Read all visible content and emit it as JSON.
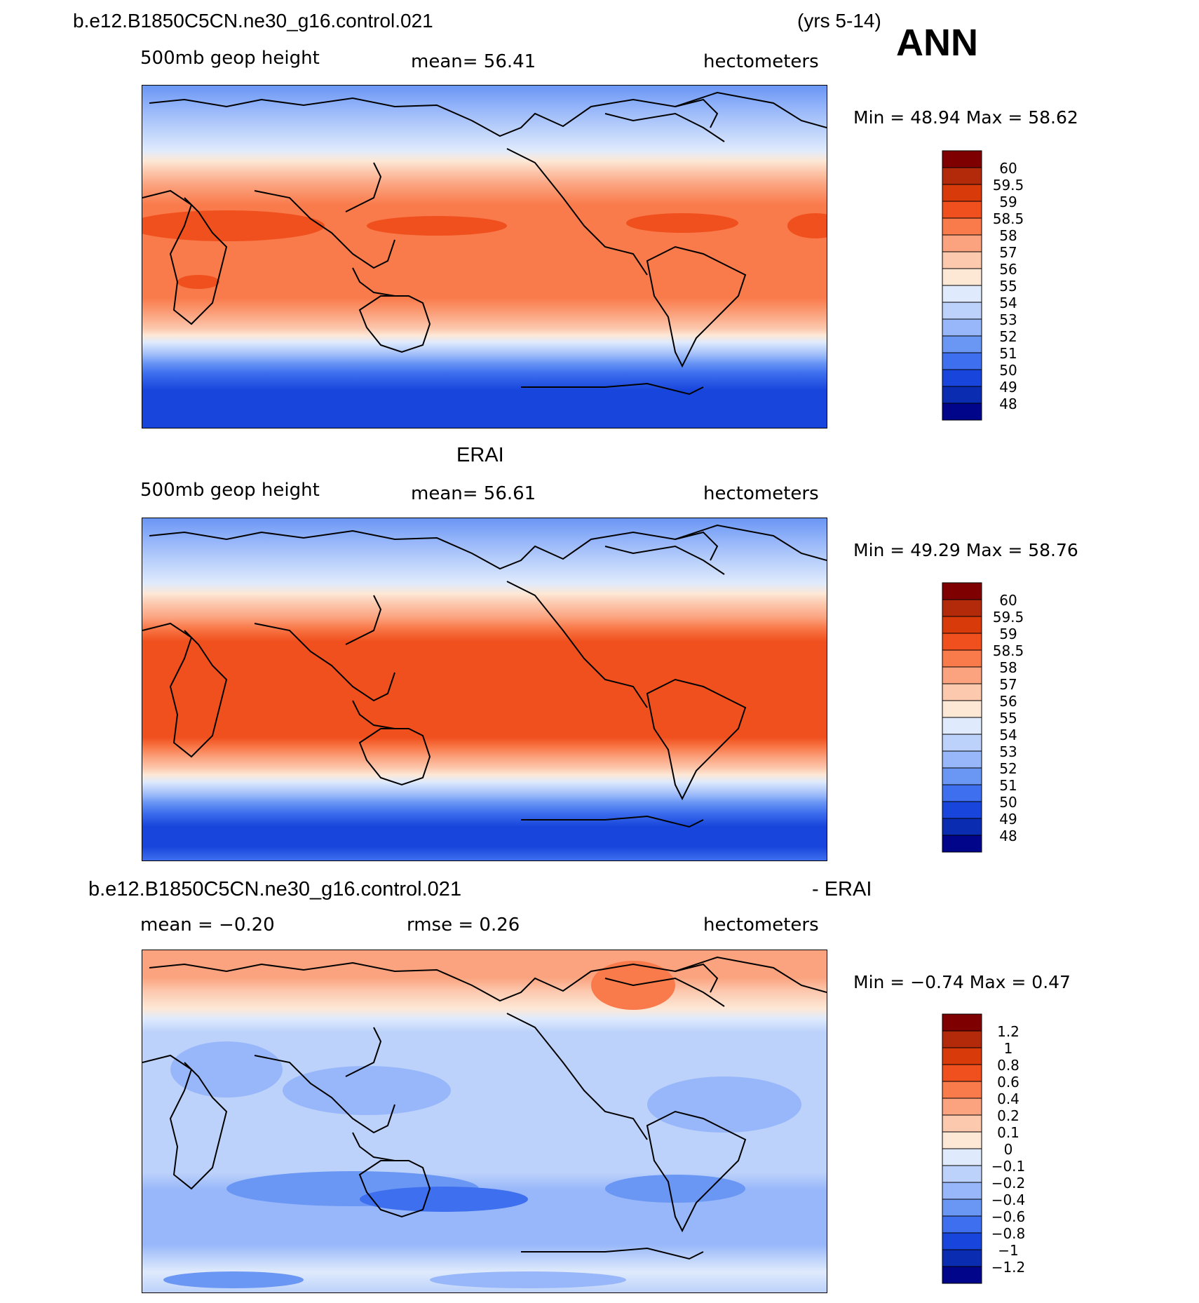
{
  "header": {
    "case_name": "b.e12.B1850C5CN.ne30_g16.control.021",
    "years": "(yrs 5-14)",
    "season": "ANN"
  },
  "panels": [
    {
      "id": "model",
      "title": "",
      "left_label": "500mb  geop  height",
      "center_label": "mean=   56.41",
      "right_label": "hectometers",
      "minmax": "Min  =    48.94  Max  =    58.62",
      "colorbar": {
        "labels": [
          "60",
          "59.5",
          "59",
          "58.5",
          "58",
          "57",
          "56",
          "55",
          "54",
          "53",
          "52",
          "51",
          "50",
          "49",
          "48"
        ],
        "colors": [
          "#7f0000",
          "#b22a0a",
          "#d93a0a",
          "#f0501e",
          "#f97a4a",
          "#fba37f",
          "#fcc8ae",
          "#fde8d6",
          "#dfeafc",
          "#bcd2fb",
          "#98b7fa",
          "#6a96f4",
          "#3e6fee",
          "#1846dc",
          "#0a2cb0",
          "#00058a"
        ]
      }
    },
    {
      "id": "obs",
      "title": "ERAI",
      "left_label": "500mb  geop  height",
      "center_label": "mean=   56.61",
      "right_label": "hectometers",
      "minmax": "Min  =    49.29  Max  =    58.76",
      "colorbar": {
        "labels": [
          "60",
          "59.5",
          "59",
          "58.5",
          "58",
          "57",
          "56",
          "55",
          "54",
          "53",
          "52",
          "51",
          "50",
          "49",
          "48"
        ],
        "colors": [
          "#7f0000",
          "#b22a0a",
          "#d93a0a",
          "#f0501e",
          "#f97a4a",
          "#fba37f",
          "#fcc8ae",
          "#fde8d6",
          "#dfeafc",
          "#bcd2fb",
          "#98b7fa",
          "#6a96f4",
          "#3e6fee",
          "#1846dc",
          "#0a2cb0",
          "#00058a"
        ]
      }
    },
    {
      "id": "diff",
      "title": "b.e12.B1850C5CN.ne30_g16.control.021",
      "title_right": "- ERAI",
      "left_label": "mean  =    −0.20",
      "center_label": "rmse  =     0.26",
      "right_label": "hectometers",
      "minmax": "Min  =    −0.74  Max  =     0.47",
      "colorbar": {
        "labels": [
          "1.2",
          "1",
          "0.8",
          "0.6",
          "0.4",
          "0.2",
          "0.1",
          "0",
          "−0.1",
          "−0.2",
          "−0.4",
          "−0.6",
          "−0.8",
          "−1",
          "−1.2"
        ],
        "colors": [
          "#7f0000",
          "#b22a0a",
          "#d93a0a",
          "#f0501e",
          "#f97a4a",
          "#fba37f",
          "#fcc8ae",
          "#fde8d6",
          "#dfeafc",
          "#bcd2fb",
          "#98b7fa",
          "#6a96f4",
          "#3e6fee",
          "#1846dc",
          "#0a2cb0",
          "#00058a"
        ]
      }
    }
  ]
}
